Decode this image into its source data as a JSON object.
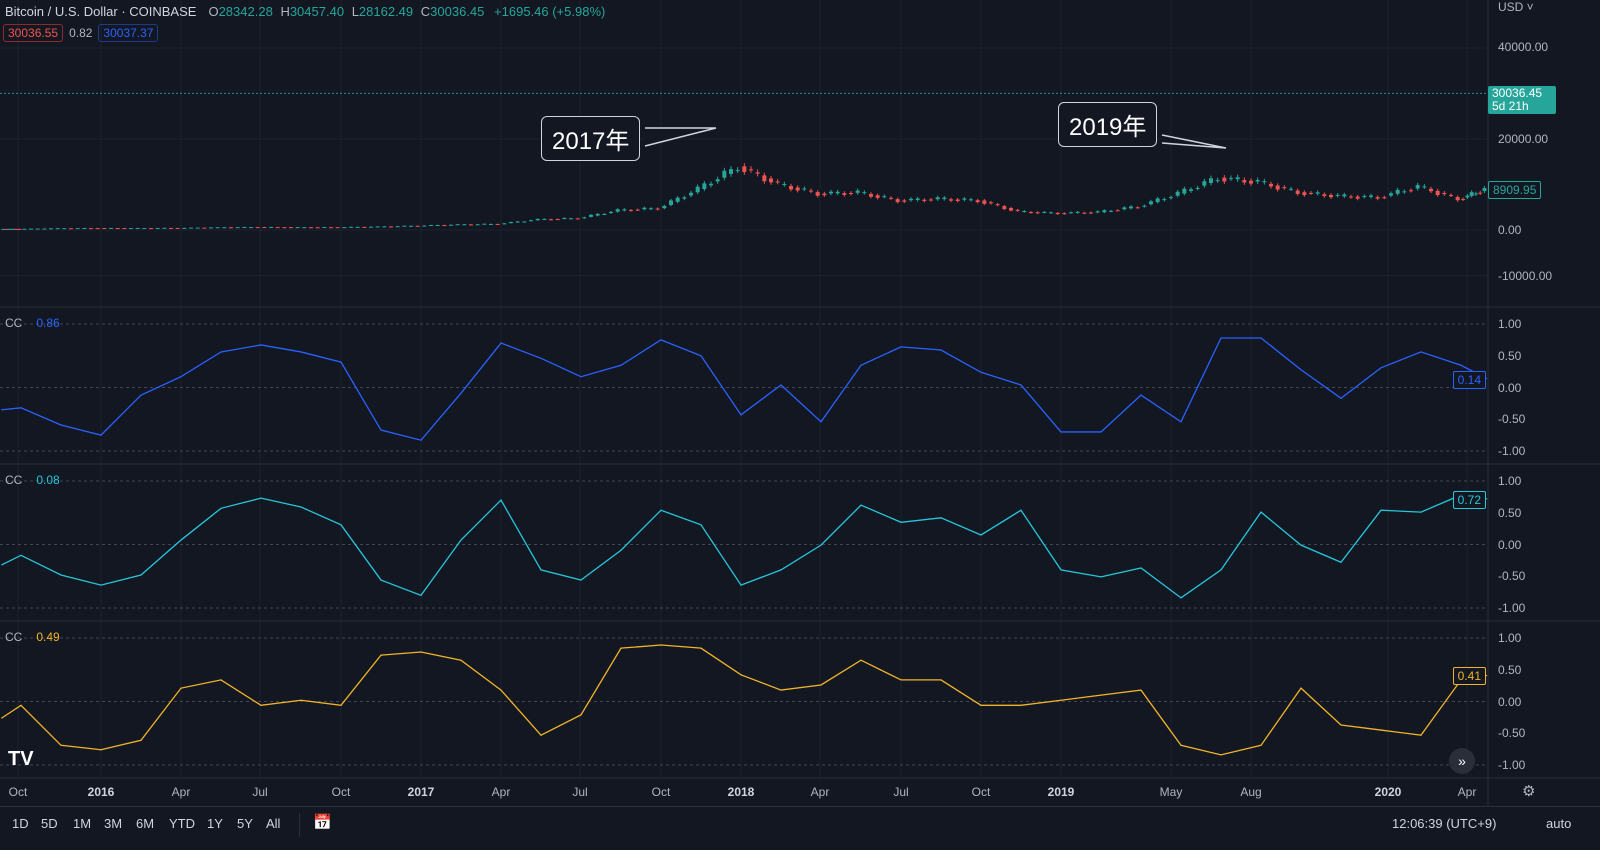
{
  "header": {
    "symbol": "Bitcoin / U.S. Dollar · COINBASE",
    "open_label": "O",
    "open": "28342.28",
    "high_label": "H",
    "high": "30457.40",
    "low_label": "L",
    "low": "28162.49",
    "close_label": "C",
    "close": "30036.45",
    "change": "+1695.46 (+5.98%)"
  },
  "indicator_inputs": {
    "red_value": "30036.55",
    "middle_value": "0.82",
    "blue_value": "30037.37"
  },
  "price_axis": {
    "currency": "USD",
    "ticks": [
      "40000.00",
      "20000.00",
      "0.00",
      "-10000.00"
    ],
    "last_price": "30036.45",
    "countdown": "5d 21h",
    "marker": "8909.95"
  },
  "callouts": [
    "2017年",
    "2019年"
  ],
  "panes": [
    {
      "label": "CC",
      "value": "0.86",
      "last": "0.14",
      "color": "#2962ff",
      "ticks": [
        "1.00",
        "0.50",
        "0.00",
        "-0.50",
        "-1.00"
      ]
    },
    {
      "label": "CC",
      "value": "0.08",
      "last": "0.72",
      "color": "#26c6da",
      "ticks": [
        "1.00",
        "0.50",
        "0.00",
        "-0.50",
        "-1.00"
      ]
    },
    {
      "label": "CC",
      "value": "0.49",
      "last": "0.41",
      "color": "#f0b429",
      "ticks": [
        "1.00",
        "0.50",
        "0.00",
        "-0.50",
        "-1.00"
      ]
    }
  ],
  "time_axis": [
    "Oct",
    "2016",
    "Apr",
    "Jul",
    "Oct",
    "2017",
    "Apr",
    "Jul",
    "Oct",
    "2018",
    "Apr",
    "Jul",
    "Oct",
    "2019",
    "May",
    "Aug",
    "2020",
    "Apr"
  ],
  "toolbar": {
    "ranges": [
      "1D",
      "5D",
      "1M",
      "3M",
      "6M",
      "YTD",
      "1Y",
      "5Y",
      "All"
    ],
    "time": "12:06:39 (UTC+9)",
    "scale": "auto"
  },
  "colors": {
    "up": "#26a69a",
    "down": "#ef5350",
    "background": "#131722"
  },
  "chart_data": {
    "type": "line",
    "x": [
      2015.69,
      2015.75,
      2015.875,
      2016,
      2016.125,
      2016.25,
      2016.375,
      2016.5,
      2016.625,
      2016.75,
      2016.875,
      2017,
      2017.125,
      2017.25,
      2017.375,
      2017.5,
      2017.625,
      2017.75,
      2017.875,
      2018,
      2018.125,
      2018.25,
      2018.375,
      2018.5,
      2018.625,
      2018.75,
      2018.875,
      2019,
      2019.125,
      2019.25,
      2019.375,
      2019.5,
      2019.625,
      2019.75,
      2019.875,
      2020,
      2020.125,
      2020.25,
      2020.33
    ],
    "price": [
      240,
      250,
      380,
      430,
      420,
      450,
      580,
      650,
      600,
      620,
      740,
      960,
      1200,
      1350,
      2300,
      2600,
      4300,
      4800,
      9000,
      14000,
      10000,
      8000,
      8200,
      6500,
      6800,
      6500,
      4000,
      3700,
      3900,
      5200,
      8000,
      11500,
      10500,
      8300,
      7400,
      7200,
      9500,
      6800,
      8910
    ],
    "series": [
      {
        "values": [
          -0.35,
          -0.32,
          -0.59,
          -0.75,
          -0.12,
          0.17,
          0.56,
          0.67,
          0.56,
          0.4,
          -0.67,
          -0.83,
          -0.09,
          0.7,
          0.46,
          0.17,
          0.35,
          0.75,
          0.5,
          -0.43,
          0.04,
          -0.54,
          0.35,
          0.64,
          0.59,
          0.24,
          0.04,
          -0.7,
          -0.7,
          -0.12,
          -0.54,
          0.78,
          0.78,
          0.28,
          -0.17,
          0.31,
          0.56,
          0.35,
          0.14
        ]
      },
      {
        "values": [
          -0.32,
          -0.17,
          -0.48,
          -0.64,
          -0.48,
          0.07,
          0.57,
          0.73,
          0.59,
          0.31,
          -0.56,
          -0.8,
          0.07,
          0.7,
          -0.4,
          -0.56,
          -0.09,
          0.54,
          0.31,
          -0.64,
          -0.4,
          -0.01,
          0.62,
          0.35,
          0.42,
          0.15,
          0.54,
          -0.4,
          -0.51,
          -0.37,
          -0.84,
          -0.4,
          0.51,
          -0.01,
          -0.28,
          0.54,
          0.51,
          0.78,
          0.72
        ]
      },
      {
        "values": [
          -0.26,
          -0.06,
          -0.69,
          -0.76,
          -0.61,
          0.21,
          0.34,
          -0.06,
          0.02,
          -0.06,
          0.73,
          0.78,
          0.65,
          0.18,
          -0.53,
          -0.21,
          0.84,
          0.89,
          0.84,
          0.42,
          0.18,
          0.26,
          0.65,
          0.34,
          0.34,
          -0.06,
          -0.06,
          0.02,
          0.1,
          0.18,
          -0.69,
          -0.84,
          -0.69,
          0.21,
          -0.37,
          -0.45,
          -0.53,
          0.34,
          0.41
        ]
      }
    ],
    "price_ylim": [
      -15000,
      50000
    ],
    "cc_ylim": [
      -1,
      1
    ],
    "grid": true
  }
}
